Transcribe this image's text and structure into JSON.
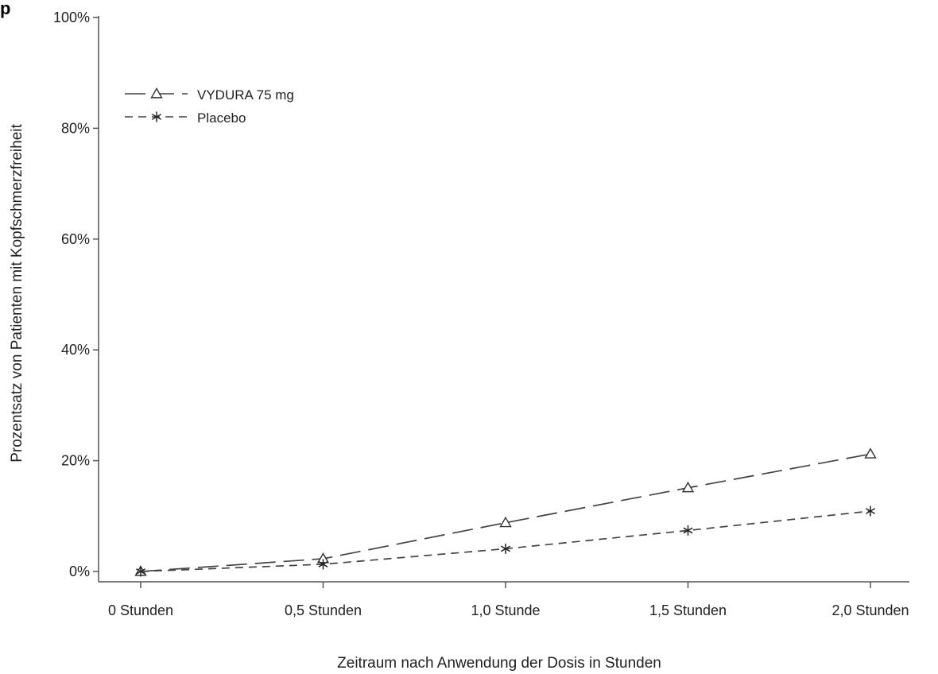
{
  "corner_mark": "p",
  "chart_data": {
    "type": "line",
    "title": "",
    "xlabel": "Zeitraum nach Anwendung der Dosis in Stunden",
    "ylabel": "Prozentsatz von Patienten mit Kopfschmerzfreiheit",
    "categories": [
      "0 Stunden",
      "0,5 Stunden",
      "1,0 Stunde",
      "1,5 Stunden",
      "2,0 Stunden"
    ],
    "yticks": [
      "0%",
      "20%",
      "40%",
      "60%",
      "80%",
      "100%"
    ],
    "ylim": [
      0,
      100
    ],
    "grid": false,
    "legend_position": "top-left",
    "series": [
      {
        "name": "VYDURA 75 mg",
        "marker": "triangle",
        "line_style": "long-dash",
        "color": "#444444",
        "values": [
          0,
          2.3,
          8.8,
          15.1,
          21.2
        ]
      },
      {
        "name": "Placebo",
        "marker": "asterisk",
        "line_style": "short-dash",
        "color": "#444444",
        "values": [
          0,
          1.3,
          4.1,
          7.4,
          10.9
        ]
      }
    ]
  }
}
